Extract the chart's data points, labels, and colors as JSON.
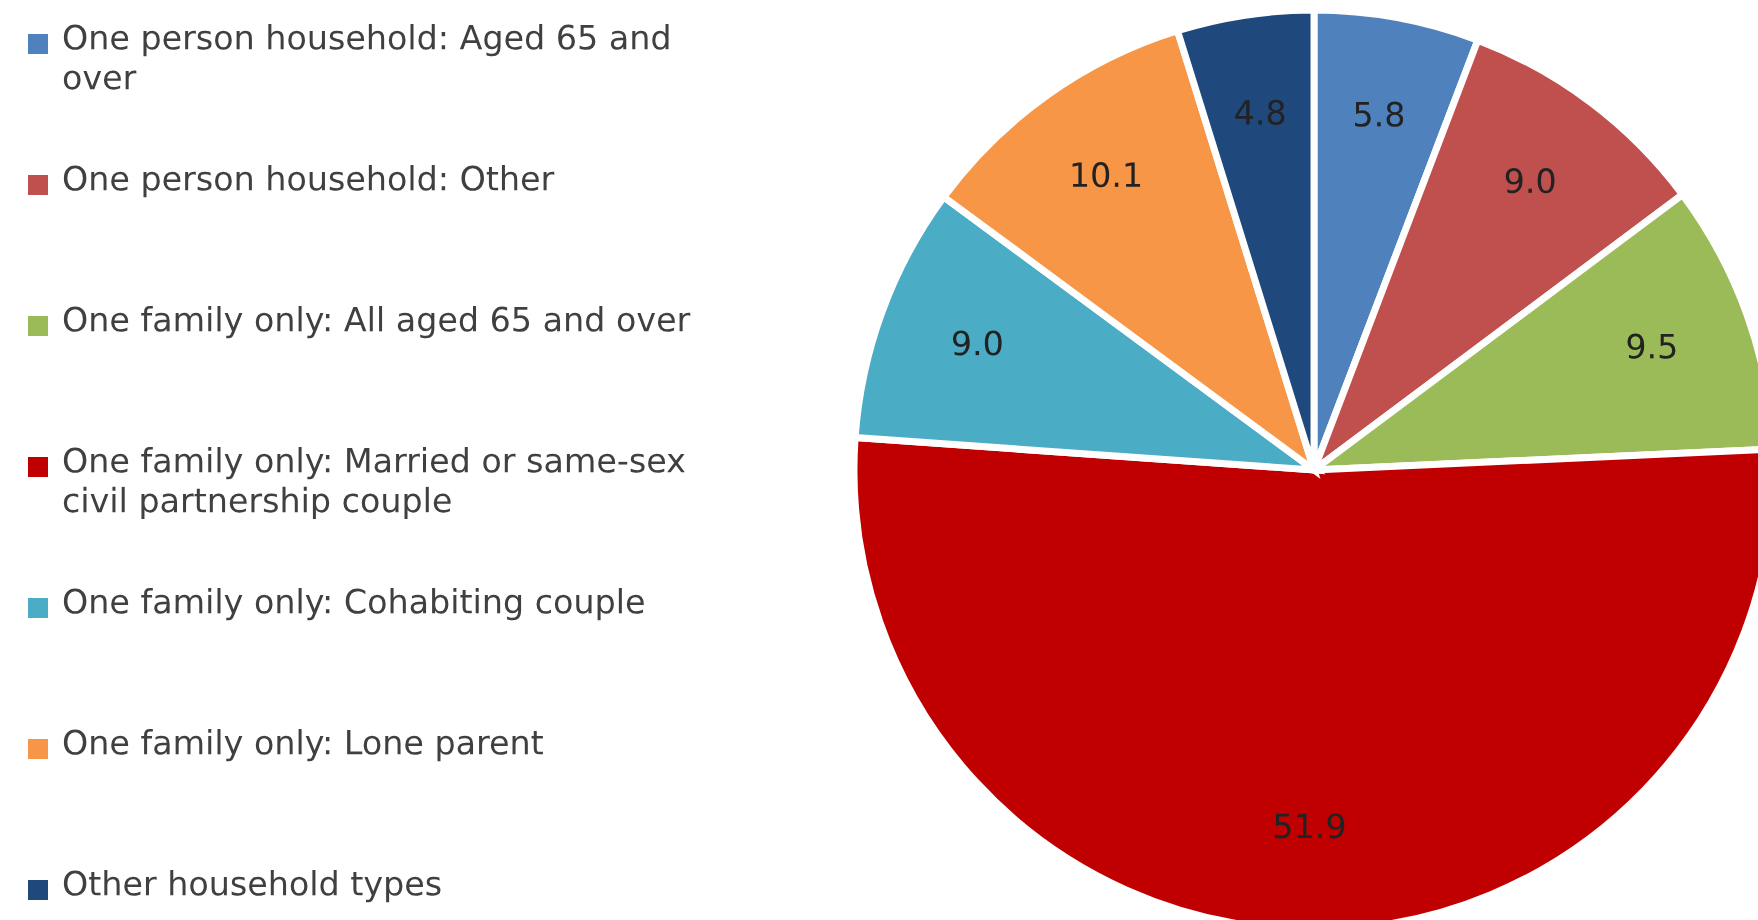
{
  "chart_data": {
    "type": "pie",
    "categories": [
      "One person household: Aged 65 and over",
      "One person household: Other",
      "One family only: All aged 65 and over",
      "One family only: Married or same-sex civil partnership couple",
      "One family only: Cohabiting couple",
      "One family only: Lone parent",
      "Other household types"
    ],
    "values": [
      5.8,
      9.0,
      9.5,
      51.9,
      9.0,
      10.1,
      4.8
    ],
    "colors": [
      "#4f81bd",
      "#c0504d",
      "#9bbb59",
      "#c00000",
      "#4bacc6",
      "#f79646",
      "#1f497d"
    ],
    "value_labels": [
      "5.8",
      "9.0",
      "9.5",
      "51.9",
      "9.0",
      "10.1",
      "4.8"
    ],
    "legend": "left"
  }
}
